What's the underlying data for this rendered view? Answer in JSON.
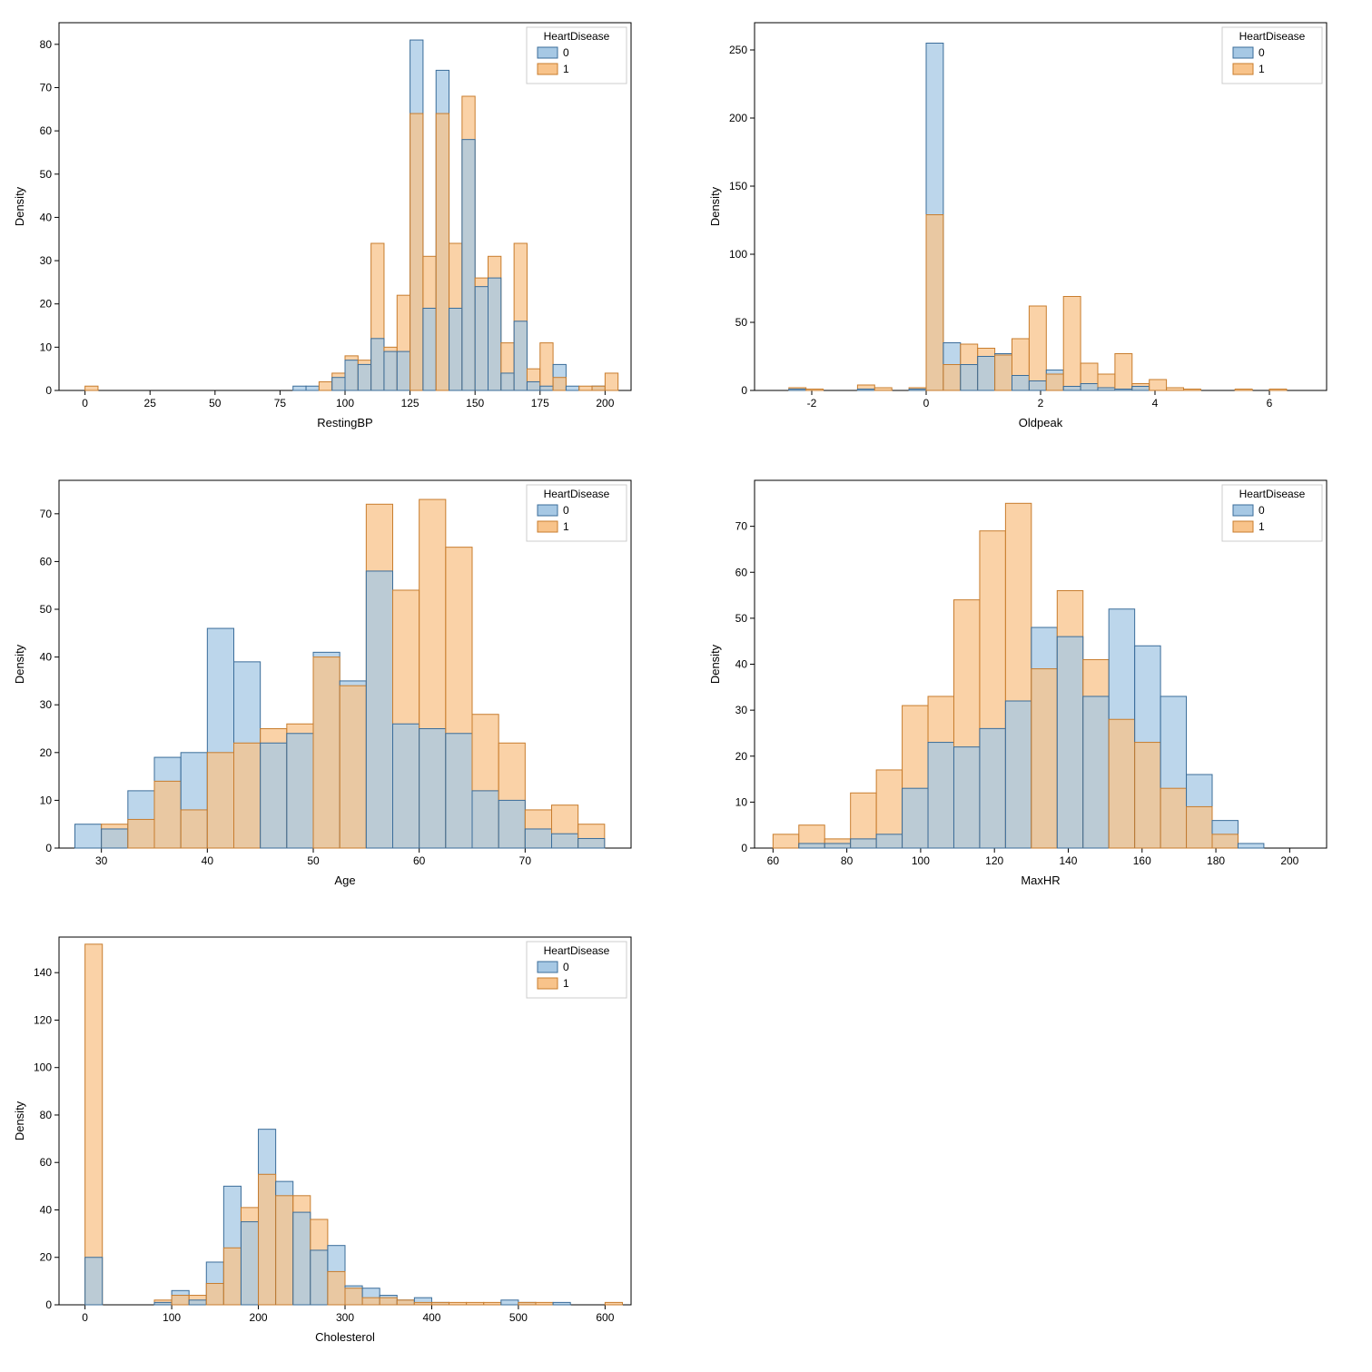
{
  "colors": {
    "series0_fill": "#a6c8e4",
    "series0_stroke": "#3b6d9a",
    "series1_fill": "#f8c38a",
    "series1_stroke": "#c87d2e",
    "axis": "#000000",
    "background": "#ffffff"
  },
  "legend": {
    "title": "HeartDisease",
    "items": [
      "0",
      "1"
    ]
  },
  "label_fontsize": 13,
  "tick_fontsize": 12,
  "bar_alpha": 0.75,
  "panels": [
    {
      "type": "histogram",
      "xlabel": "RestingBP",
      "ylabel": "Density",
      "xlim": [
        -10,
        210
      ],
      "ylim": [
        0,
        85
      ],
      "xticks": [
        0,
        25,
        50,
        75,
        100,
        125,
        150,
        175,
        200
      ],
      "yticks": [
        0,
        10,
        20,
        30,
        40,
        50,
        60,
        70,
        80
      ],
      "bin_width": 5,
      "bins_start": 0,
      "series0": [
        0,
        0,
        0,
        0,
        0,
        0,
        0,
        0,
        0,
        0,
        0,
        0,
        0,
        0,
        0,
        0,
        1,
        1,
        0,
        3,
        7,
        6,
        12,
        9,
        9,
        81,
        19,
        74,
        19,
        58,
        24,
        26,
        4,
        16,
        2,
        1,
        6,
        1,
        0,
        1,
        0
      ],
      "series1": [
        1,
        0,
        0,
        0,
        0,
        0,
        0,
        0,
        0,
        0,
        0,
        0,
        0,
        0,
        0,
        0,
        0,
        0,
        2,
        4,
        8,
        7,
        34,
        10,
        22,
        64,
        31,
        64,
        34,
        68,
        26,
        31,
        11,
        34,
        5,
        11,
        3,
        0,
        1,
        1,
        4
      ]
    },
    {
      "type": "histogram",
      "xlabel": "Oldpeak",
      "ylabel": "Density",
      "xlim": [
        -3,
        7
      ],
      "ylim": [
        0,
        270
      ],
      "xticks": [
        -2,
        0,
        2,
        4,
        6
      ],
      "yticks": [
        0,
        50,
        100,
        150,
        200,
        250
      ],
      "bin_width": 0.3,
      "bins_start": -3,
      "series0": [
        0,
        0,
        1,
        0,
        0,
        0,
        1,
        0,
        0,
        1,
        255,
        35,
        19,
        25,
        27,
        11,
        7,
        15,
        3,
        5,
        2,
        1,
        3,
        0,
        0,
        0,
        0,
        0,
        0,
        0,
        0,
        0,
        0,
        0
      ],
      "series1": [
        0,
        0,
        2,
        1,
        0,
        0,
        4,
        2,
        0,
        2,
        129,
        19,
        34,
        31,
        26,
        38,
        62,
        12,
        69,
        20,
        12,
        27,
        5,
        8,
        2,
        1,
        0,
        0,
        1,
        0,
        1,
        0,
        0,
        0
      ]
    },
    {
      "type": "histogram",
      "xlabel": "Age",
      "ylabel": "Density",
      "xlim": [
        26,
        80
      ],
      "ylim": [
        0,
        77
      ],
      "xticks": [
        30,
        40,
        50,
        60,
        70
      ],
      "yticks": [
        0,
        10,
        20,
        30,
        40,
        50,
        60,
        70
      ],
      "bin_width": 2.5,
      "bins_start": 27.5,
      "series0": [
        5,
        4,
        12,
        19,
        20,
        46,
        39,
        22,
        24,
        41,
        35,
        58,
        26,
        25,
        24,
        12,
        10,
        4,
        3,
        2,
        0
      ],
      "series1": [
        0,
        5,
        6,
        14,
        8,
        20,
        22,
        25,
        26,
        40,
        34,
        72,
        54,
        73,
        63,
        28,
        22,
        8,
        9,
        5,
        0
      ]
    },
    {
      "type": "histogram",
      "xlabel": "MaxHR",
      "ylabel": "Density",
      "xlim": [
        55,
        210
      ],
      "ylim": [
        0,
        80
      ],
      "xticks": [
        60,
        80,
        100,
        120,
        140,
        160,
        180,
        200
      ],
      "yticks": [
        0,
        10,
        20,
        30,
        40,
        50,
        60,
        70
      ],
      "bin_width": 7,
      "bins_start": 60,
      "series0": [
        0,
        1,
        1,
        2,
        3,
        13,
        23,
        22,
        26,
        32,
        48,
        46,
        33,
        52,
        44,
        33,
        16,
        6,
        1,
        0
      ],
      "series1": [
        3,
        5,
        2,
        12,
        17,
        31,
        33,
        54,
        69,
        75,
        39,
        56,
        41,
        28,
        23,
        13,
        9,
        3,
        0,
        0
      ]
    },
    {
      "type": "histogram",
      "xlabel": "Cholesterol",
      "ylabel": "Density",
      "xlim": [
        -30,
        630
      ],
      "ylim": [
        0,
        155
      ],
      "xticks": [
        0,
        100,
        200,
        300,
        400,
        500,
        600
      ],
      "yticks": [
        0,
        20,
        40,
        60,
        80,
        100,
        120,
        140
      ],
      "bin_width": 20,
      "bins_start": 0,
      "series0": [
        20,
        0,
        0,
        0,
        1,
        6,
        2,
        18,
        50,
        35,
        74,
        52,
        39,
        23,
        25,
        8,
        7,
        4,
        2,
        3,
        1,
        0,
        0,
        0,
        2,
        1,
        0,
        1,
        0,
        0,
        0
      ],
      "series1": [
        152,
        0,
        0,
        0,
        2,
        4,
        4,
        9,
        24,
        41,
        55,
        46,
        46,
        36,
        14,
        7,
        3,
        3,
        2,
        1,
        1,
        1,
        1,
        1,
        0,
        1,
        1,
        0,
        0,
        0,
        1
      ]
    }
  ]
}
